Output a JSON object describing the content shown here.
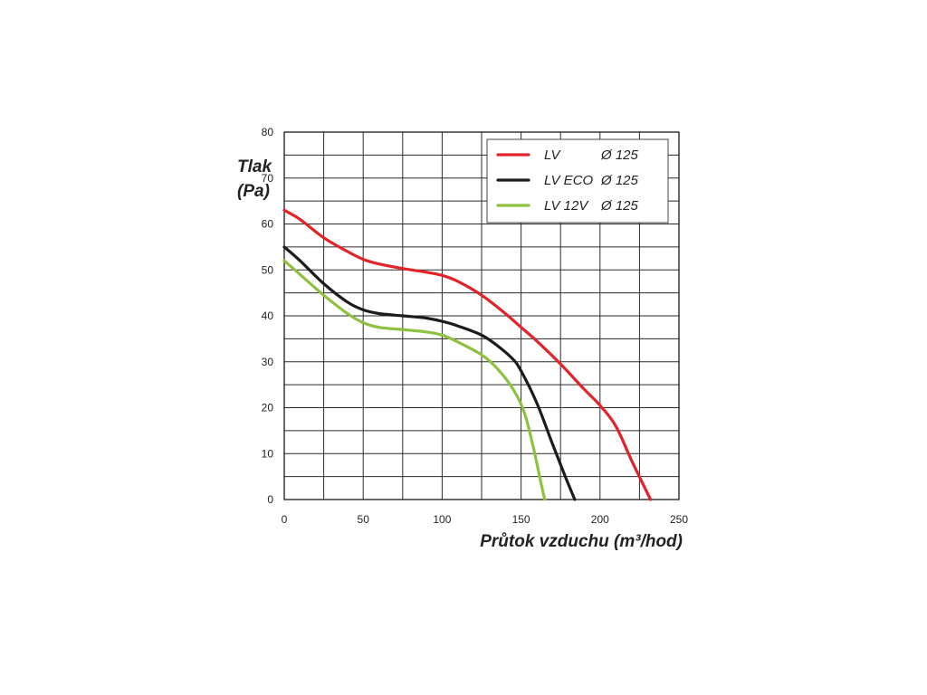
{
  "chart_data": {
    "type": "line",
    "xlabel": "Průtok vzduchu (m³/hod)",
    "ylabel_line1": "Tlak",
    "ylabel_line2": "(Pa)",
    "xlim": [
      0,
      250
    ],
    "ylim": [
      0,
      80
    ],
    "x_ticks": [
      0,
      50,
      100,
      150,
      200,
      250
    ],
    "y_ticks": [
      0,
      10,
      20,
      30,
      40,
      50,
      60,
      70,
      80
    ],
    "x_grid_step": 25,
    "y_grid_step": 5,
    "grid": true,
    "legend_position": "top-right",
    "series": [
      {
        "name": "LV",
        "diameter": "Ø 125",
        "color": "#e2232a",
        "points": [
          [
            0,
            63
          ],
          [
            10,
            61
          ],
          [
            25,
            57
          ],
          [
            40,
            54
          ],
          [
            50,
            52.3
          ],
          [
            60,
            51.3
          ],
          [
            75,
            50.3
          ],
          [
            90,
            49.5
          ],
          [
            100,
            48.8
          ],
          [
            110,
            47.5
          ],
          [
            125,
            44.5
          ],
          [
            140,
            40.5
          ],
          [
            150,
            37.5
          ],
          [
            160,
            34.5
          ],
          [
            175,
            29.5
          ],
          [
            190,
            24
          ],
          [
            200,
            20.5
          ],
          [
            210,
            16
          ],
          [
            220,
            8.5
          ],
          [
            232,
            0
          ]
        ]
      },
      {
        "name": "LV ECO",
        "diameter": "Ø 125",
        "color": "#1c1c1c",
        "points": [
          [
            0,
            55
          ],
          [
            10,
            52
          ],
          [
            25,
            47
          ],
          [
            40,
            43
          ],
          [
            50,
            41.3
          ],
          [
            60,
            40.5
          ],
          [
            75,
            40
          ],
          [
            90,
            39.5
          ],
          [
            100,
            38.8
          ],
          [
            110,
            37.8
          ],
          [
            125,
            35.8
          ],
          [
            135,
            33.5
          ],
          [
            145,
            30.5
          ],
          [
            150,
            28
          ],
          [
            160,
            21
          ],
          [
            170,
            12
          ],
          [
            178,
            5
          ],
          [
            184,
            0
          ]
        ]
      },
      {
        "name": "LV 12V",
        "diameter": "Ø 125",
        "color": "#8dc13f",
        "points": [
          [
            0,
            52
          ],
          [
            10,
            49
          ],
          [
            25,
            44.5
          ],
          [
            40,
            40.5
          ],
          [
            50,
            38.5
          ],
          [
            60,
            37.5
          ],
          [
            75,
            37
          ],
          [
            90,
            36.5
          ],
          [
            100,
            35.8
          ],
          [
            110,
            34.3
          ],
          [
            125,
            31.5
          ],
          [
            135,
            28.5
          ],
          [
            145,
            24
          ],
          [
            152,
            19
          ],
          [
            158,
            11
          ],
          [
            163,
            3
          ],
          [
            165,
            0
          ]
        ]
      }
    ]
  }
}
